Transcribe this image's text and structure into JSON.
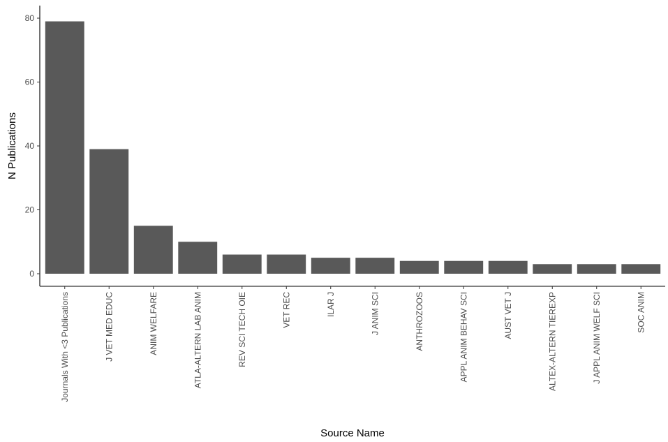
{
  "chart_data": {
    "type": "bar",
    "title": "",
    "xlabel": "Source Name",
    "ylabel": "N Publications",
    "ylim": [
      0,
      82
    ],
    "yticks": [
      0,
      20,
      40,
      60,
      80
    ],
    "grid": false,
    "legend": "none",
    "colors": {
      "bar": "#595959",
      "axis": "#000000",
      "tick_text": "#4d4d4d"
    },
    "categories": [
      "Journals With <3 Publications",
      "J VET MED EDUC",
      "ANIM WELFARE",
      "ATLA-ALTERN LAB ANIM",
      "REV SCI TECH OIE",
      "VET REC",
      "ILAR J",
      "J ANIM SCI",
      "ANTHROZOOS",
      "APPL ANIM BEHAV SCI",
      "AUST VET J",
      "ALTEX-ALTERN TIEREXP",
      "J APPL ANIM WELF SCI",
      "SOC ANIM"
    ],
    "values": [
      79,
      39,
      15,
      10,
      6,
      6,
      5,
      5,
      4,
      4,
      4,
      3,
      3,
      3
    ]
  }
}
